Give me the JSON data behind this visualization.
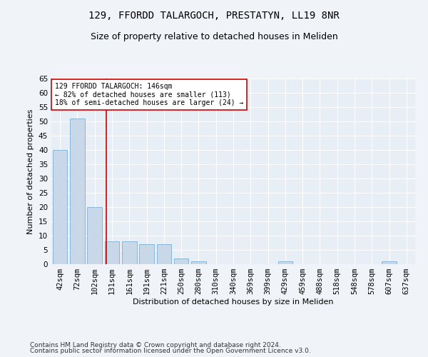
{
  "title": "129, FFORDD TALARGOCH, PRESTATYN, LL19 8NR",
  "subtitle": "Size of property relative to detached houses in Meliden",
  "xlabel": "Distribution of detached houses by size in Meliden",
  "ylabel": "Number of detached properties",
  "bar_color": "#c8d8e8",
  "bar_edge_color": "#7bafd4",
  "categories": [
    "42sqm",
    "72sqm",
    "102sqm",
    "131sqm",
    "161sqm",
    "191sqm",
    "221sqm",
    "250sqm",
    "280sqm",
    "310sqm",
    "340sqm",
    "369sqm",
    "399sqm",
    "429sqm",
    "459sqm",
    "488sqm",
    "518sqm",
    "548sqm",
    "578sqm",
    "607sqm",
    "637sqm"
  ],
  "values": [
    40,
    51,
    20,
    8,
    8,
    7,
    7,
    2,
    1,
    0,
    0,
    0,
    0,
    1,
    0,
    0,
    0,
    0,
    0,
    1,
    0
  ],
  "vline_x": 2.67,
  "vline_color": "#cc0000",
  "annotation_text": "129 FFORDD TALARGOCH: 146sqm\n← 82% of detached houses are smaller (113)\n18% of semi-detached houses are larger (24) →",
  "annotation_box_color": "#ffffff",
  "annotation_box_edge": "#cc0000",
  "ylim": [
    0,
    65
  ],
  "yticks": [
    0,
    5,
    10,
    15,
    20,
    25,
    30,
    35,
    40,
    45,
    50,
    55,
    60,
    65
  ],
  "footer_line1": "Contains HM Land Registry data © Crown copyright and database right 2024.",
  "footer_line2": "Contains public sector information licensed under the Open Government Licence v3.0.",
  "bg_color": "#f0f4f8",
  "plot_bg_color": "#e8eef5",
  "grid_color": "#ffffff",
  "title_fontsize": 10,
  "subtitle_fontsize": 9,
  "axis_label_fontsize": 8,
  "tick_fontsize": 7.5,
  "footer_fontsize": 6.5
}
